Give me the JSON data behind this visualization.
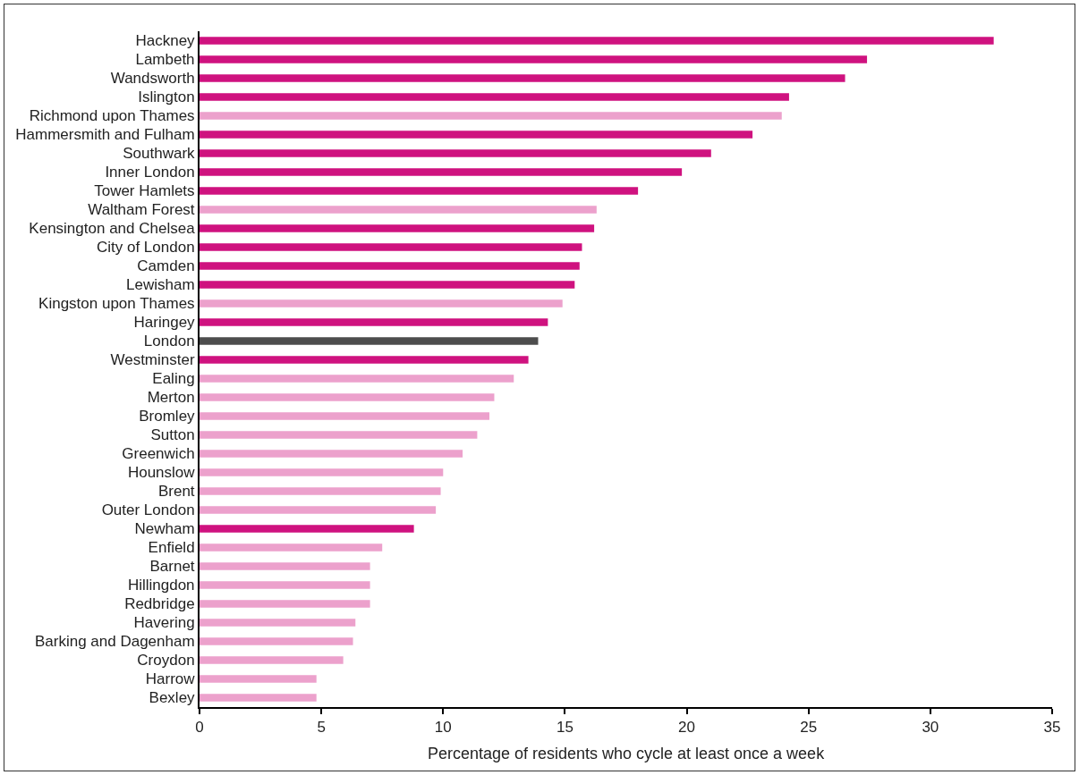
{
  "chart_data": {
    "type": "bar",
    "orientation": "horizontal",
    "xlabel": "Percentage of residents who cycle at least once a week",
    "categories": [
      "Hackney",
      "Lambeth",
      "Wandsworth",
      "Islington",
      "Richmond upon Thames",
      "Hammersmith and Fulham",
      "Southwark",
      "Inner London",
      "Tower Hamlets",
      "Waltham Forest",
      "Kensington and Chelsea",
      "City of London",
      "Camden",
      "Lewisham",
      "Kingston upon Thames",
      "Haringey",
      "London",
      "Westminster",
      "Ealing",
      "Merton",
      "Bromley",
      "Sutton",
      "Greenwich",
      "Hounslow",
      "Brent",
      "Outer London",
      "Newham",
      "Enfield",
      "Barnet",
      "Hillingdon",
      "Redbridge",
      "Havering",
      "Barking and Dagenham",
      "Croydon",
      "Harrow",
      "Bexley"
    ],
    "values": [
      32.6,
      27.4,
      26.5,
      24.2,
      23.9,
      22.7,
      21.0,
      19.8,
      18.0,
      16.3,
      16.2,
      15.7,
      15.6,
      15.4,
      14.9,
      14.3,
      13.9,
      13.5,
      12.9,
      12.1,
      11.9,
      11.4,
      10.8,
      10.0,
      9.9,
      9.7,
      8.8,
      7.5,
      7.0,
      7.0,
      7.0,
      6.4,
      6.3,
      5.9,
      4.8,
      4.8
    ],
    "colors": [
      "#cf127f",
      "#cf127f",
      "#cf127f",
      "#cf127f",
      "#eca1cc",
      "#cf127f",
      "#cf127f",
      "#cf127f",
      "#cf127f",
      "#eca1cc",
      "#cf127f",
      "#cf127f",
      "#cf127f",
      "#cf127f",
      "#eca1cc",
      "#cf127f",
      "#4d4d4d",
      "#cf127f",
      "#eca1cc",
      "#eca1cc",
      "#eca1cc",
      "#eca1cc",
      "#eca1cc",
      "#eca1cc",
      "#eca1cc",
      "#eca1cc",
      "#cf127f",
      "#eca1cc",
      "#eca1cc",
      "#eca1cc",
      "#eca1cc",
      "#eca1cc",
      "#eca1cc",
      "#eca1cc",
      "#eca1cc",
      "#eca1cc"
    ],
    "xlim": [
      0,
      35
    ],
    "xticks": [
      0,
      5,
      10,
      15,
      20,
      25,
      30,
      35
    ],
    "grid": false,
    "legend": false
  }
}
